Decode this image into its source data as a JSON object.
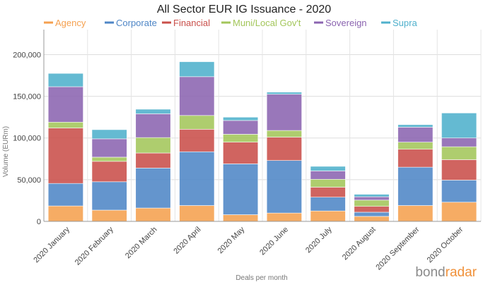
{
  "chart_data": {
    "type": "bar",
    "stacked": true,
    "title": "All Sector EUR IG Issuance - 2020",
    "xlabel": "Deals per month",
    "ylabel": "Volume (EURm)",
    "ylim": [
      0,
      230000
    ],
    "yticks": [
      0,
      50000,
      100000,
      150000,
      200000
    ],
    "ytick_labels": [
      "0",
      "50,000",
      "100,000",
      "150,000",
      "200,000"
    ],
    "grid": true,
    "legend_position": "top",
    "categories": [
      "2020 January",
      "2020 February",
      "2020 March",
      "2020 April",
      "2020 May",
      "2020 June",
      "2020 July",
      "2020 August",
      "2020 September",
      "2020 October"
    ],
    "series": [
      {
        "name": "Agency",
        "color": "#f5a04f",
        "values": [
          18500,
          13500,
          16000,
          19000,
          8000,
          10000,
          12500,
          6000,
          19000,
          23000
        ]
      },
      {
        "name": "Corporate",
        "color": "#4e86c6",
        "values": [
          27000,
          34000,
          48000,
          64500,
          61000,
          63000,
          16500,
          5000,
          46000,
          26500
        ]
      },
      {
        "name": "Financial",
        "color": "#c94f4a",
        "values": [
          66500,
          24500,
          18000,
          27000,
          26000,
          28000,
          12000,
          7000,
          21500,
          24500
        ]
      },
      {
        "name": "Muni/Local Gov't",
        "color": "#a3c65a",
        "values": [
          7000,
          5000,
          18500,
          16500,
          9500,
          8000,
          9500,
          7500,
          8500,
          15500
        ]
      },
      {
        "name": "Sovereign",
        "color": "#8b64b0",
        "values": [
          42500,
          22000,
          28500,
          46500,
          16500,
          43500,
          10000,
          4000,
          18000,
          10500
        ]
      },
      {
        "name": "Supra",
        "color": "#4fb0cc",
        "values": [
          16000,
          11000,
          5500,
          18000,
          4000,
          2500,
          5500,
          3000,
          3000,
          30000
        ]
      }
    ]
  },
  "brand": {
    "part1": "bond",
    "part2": "radar"
  }
}
